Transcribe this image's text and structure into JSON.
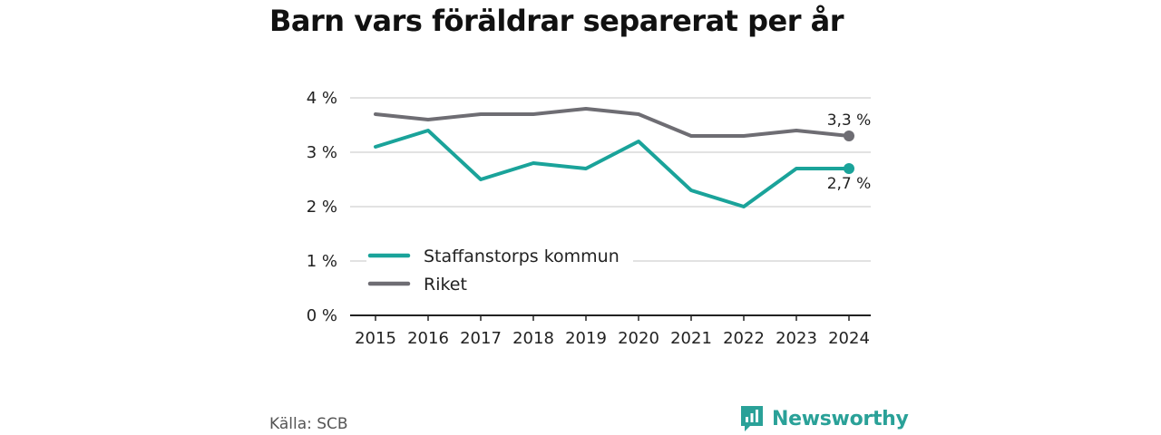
{
  "title": "Barn vars föräldrar separerat per år",
  "source": "Källa: SCB",
  "brand": "Newsworthy",
  "colors": {
    "teal": "#1aa39a",
    "gray": "#6e6d73",
    "grid": "#d9d9d9",
    "axis": "#222222"
  },
  "chart_data": {
    "type": "line",
    "title": "Barn vars föräldrar separerat per år",
    "categories": [
      "2015",
      "2016",
      "2017",
      "2018",
      "2019",
      "2020",
      "2021",
      "2022",
      "2023",
      "2024"
    ],
    "y_ticks": [
      "0 %",
      "1 %",
      "2 %",
      "3 %",
      "4 %"
    ],
    "ylim": [
      0,
      4
    ],
    "grid": true,
    "legend_placement": "bottom-left",
    "series": [
      {
        "name": "Staffanstorps kommun",
        "color": "#1aa39a",
        "values": [
          3.1,
          3.4,
          2.5,
          2.8,
          2.7,
          3.2,
          2.3,
          2.0,
          2.7,
          2.7
        ],
        "end_label": "2,7 %"
      },
      {
        "name": "Riket",
        "color": "#6e6d73",
        "values": [
          3.7,
          3.6,
          3.7,
          3.7,
          3.8,
          3.7,
          3.3,
          3.3,
          3.4,
          3.3
        ],
        "end_label": "3,3 %"
      }
    ]
  }
}
